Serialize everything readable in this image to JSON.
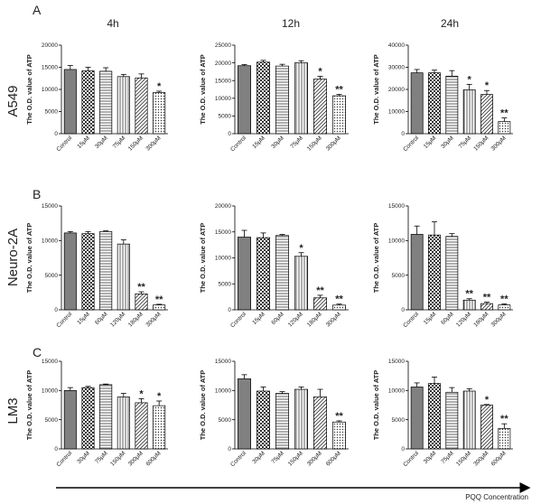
{
  "figure": {
    "time_labels": [
      "4h",
      "12h",
      "24h"
    ],
    "rows": [
      {
        "panel": "A",
        "cell_line": "A549"
      },
      {
        "panel": "B",
        "cell_line": "Neuro-2A"
      },
      {
        "panel": "C",
        "cell_line": "LM3"
      }
    ],
    "ylabel": "The O.D. value of ATP",
    "xlabel": "PQQ Concentration"
  },
  "colors": {
    "control": "#808080",
    "pattern_bg": "#ffffff",
    "stroke": "#000000",
    "pattern_ink": "#333333"
  },
  "patterns": [
    "solid",
    "checker",
    "hlines",
    "vlines",
    "diag",
    "dots"
  ],
  "chart_data": [
    {
      "type": "bar",
      "row": "A549",
      "time": "4h",
      "ylabel": "The O.D. value of ATP",
      "ylim": [
        0,
        20000
      ],
      "yticks": [
        0,
        5000,
        10000,
        15000,
        20000
      ],
      "categories": [
        "Control",
        "15μM",
        "30μM",
        "75μM",
        "150μM",
        "300μM"
      ],
      "values": [
        14500,
        14200,
        14100,
        12900,
        12600,
        9300
      ],
      "errors": [
        900,
        800,
        800,
        500,
        900,
        300
      ],
      "significance": [
        "",
        "",
        "",
        "",
        "",
        "*"
      ]
    },
    {
      "type": "bar",
      "row": "A549",
      "time": "12h",
      "ylabel": "The O.D. value of ATP",
      "ylim": [
        0,
        25000
      ],
      "yticks": [
        0,
        5000,
        10000,
        15000,
        20000,
        25000
      ],
      "categories": [
        "Control",
        "15μM",
        "30μM",
        "75μM",
        "150μM",
        "300μM"
      ],
      "values": [
        19200,
        20200,
        19100,
        20000,
        15400,
        10700
      ],
      "errors": [
        300,
        500,
        500,
        600,
        800,
        400
      ],
      "significance": [
        "",
        "",
        "",
        "",
        "*",
        "**"
      ]
    },
    {
      "type": "bar",
      "row": "A549",
      "time": "24h",
      "ylabel": "The O.D. value of ATP",
      "ylim": [
        0,
        40000
      ],
      "yticks": [
        0,
        10000,
        20000,
        30000,
        40000
      ],
      "categories": [
        "Control",
        "15μM",
        "30μM",
        "75μM",
        "150μM",
        "300μM"
      ],
      "values": [
        27500,
        27500,
        26000,
        19800,
        17700,
        5500
      ],
      "errors": [
        1500,
        1200,
        2500,
        2500,
        1800,
        1600
      ],
      "significance": [
        "",
        "",
        "",
        "*",
        "*",
        "**"
      ]
    },
    {
      "type": "bar",
      "row": "Neuro-2A",
      "time": "4h",
      "ylabel": "The O.D. value of ATP",
      "ylim": [
        0,
        15000
      ],
      "yticks": [
        0,
        5000,
        10000,
        15000
      ],
      "categories": [
        "Control",
        "15μM",
        "60μM",
        "120μM",
        "180μM",
        "300μM"
      ],
      "values": [
        11100,
        11000,
        11300,
        9500,
        2300,
        700
      ],
      "errors": [
        200,
        300,
        100,
        600,
        300,
        100
      ],
      "significance": [
        "",
        "",
        "",
        "",
        "**",
        "**"
      ]
    },
    {
      "type": "bar",
      "row": "Neuro-2A",
      "time": "12h",
      "ylabel": "The O.D. value of ATP",
      "ylim": [
        0,
        20000
      ],
      "yticks": [
        0,
        5000,
        10000,
        15000,
        20000
      ],
      "categories": [
        "Control",
        "15μM",
        "60μM",
        "120μM",
        "180μM",
        "300μM"
      ],
      "values": [
        14000,
        13900,
        14300,
        10300,
        2300,
        900
      ],
      "errors": [
        1300,
        900,
        200,
        700,
        500,
        200
      ],
      "significance": [
        "",
        "",
        "",
        "*",
        "**",
        "**"
      ]
    },
    {
      "type": "bar",
      "row": "Neuro-2A",
      "time": "24h",
      "ylabel": "The O.D. value of ATP",
      "ylim": [
        0,
        15000
      ],
      "yticks": [
        0,
        5000,
        10000,
        15000
      ],
      "categories": [
        "Control",
        "15μM",
        "60μM",
        "120μM",
        "180μM",
        "300μM"
      ],
      "values": [
        10900,
        10800,
        10600,
        1400,
        900,
        700
      ],
      "errors": [
        1200,
        1900,
        400,
        200,
        200,
        150
      ],
      "significance": [
        "",
        "",
        "",
        "**",
        "**",
        "**"
      ]
    },
    {
      "type": "bar",
      "row": "LM3",
      "time": "4h",
      "ylabel": "The O.D. value of ATP",
      "ylim": [
        0,
        15000
      ],
      "yticks": [
        0,
        5000,
        10000,
        15000
      ],
      "categories": [
        "Control",
        "30μM",
        "75μM",
        "150μM",
        "300μM",
        "600μM"
      ],
      "values": [
        10000,
        10500,
        11000,
        8900,
        7900,
        7400
      ],
      "errors": [
        500,
        200,
        100,
        600,
        700,
        800
      ],
      "significance": [
        "",
        "",
        "",
        "",
        "*",
        "*"
      ]
    },
    {
      "type": "bar",
      "row": "LM3",
      "time": "12h",
      "ylabel": "The O.D. value of ATP",
      "ylim": [
        0,
        15000
      ],
      "yticks": [
        0,
        5000,
        10000,
        15000
      ],
      "categories": [
        "Control",
        "30μM",
        "75μM",
        "150μM",
        "300μM",
        "600μM"
      ],
      "values": [
        12000,
        9900,
        9500,
        10200,
        8900,
        4600
      ],
      "errors": [
        700,
        700,
        300,
        400,
        1300,
        200
      ],
      "significance": [
        "",
        "",
        "",
        "",
        "",
        "**"
      ]
    },
    {
      "type": "bar",
      "row": "LM3",
      "time": "24h",
      "ylabel": "The O.D. value of ATP",
      "ylim": [
        0,
        15000
      ],
      "yticks": [
        0,
        5000,
        10000,
        15000
      ],
      "categories": [
        "Control",
        "30μM",
        "75μM",
        "150μM",
        "300μM",
        "600μM"
      ],
      "values": [
        10600,
        11200,
        9700,
        9900,
        7500,
        3500
      ],
      "errors": [
        700,
        1100,
        800,
        400,
        100,
        800
      ],
      "significance": [
        "",
        "",
        "",
        "",
        "*",
        "**"
      ]
    }
  ]
}
